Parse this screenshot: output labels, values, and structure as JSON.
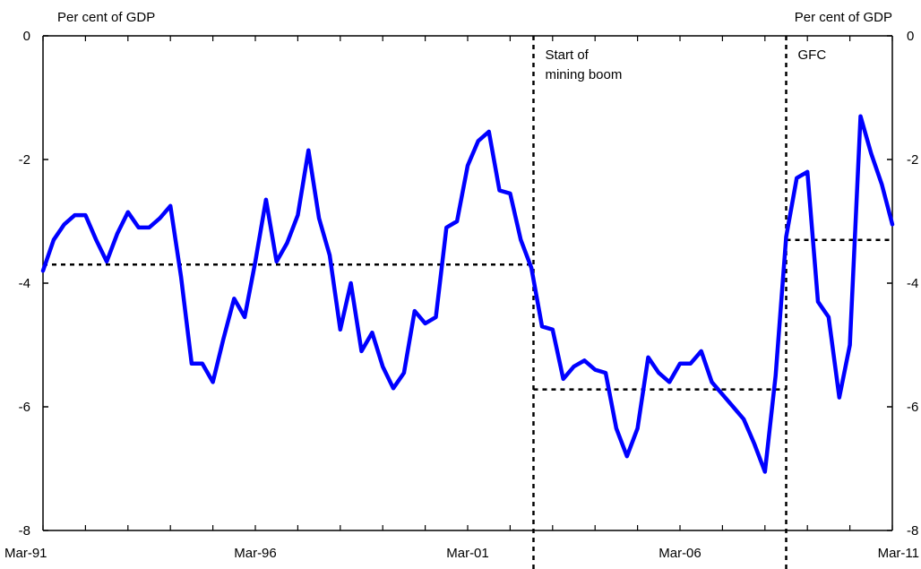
{
  "chart_data": {
    "type": "line",
    "ylabel_left": "Per cent of GDP",
    "ylabel_right": "Per cent of GDP",
    "ylim": [
      -8,
      0
    ],
    "yticks": [
      0,
      -2,
      -4,
      -6,
      -8
    ],
    "xlim": [
      1991.0,
      2011.0
    ],
    "xticks": [
      {
        "x": 1991.0,
        "label": "Mar-91"
      },
      {
        "x": 1996.0,
        "label": "Mar-96"
      },
      {
        "x": 2001.0,
        "label": "Mar-01"
      },
      {
        "x": 2006.0,
        "label": "Mar-06"
      },
      {
        "x": 2011.0,
        "label": "Mar-11"
      }
    ],
    "grid": false,
    "series": [
      {
        "color": "#0000ff",
        "x": [
          1991.0,
          1991.25,
          1991.5,
          1991.75,
          1992.0,
          1992.25,
          1992.5,
          1992.75,
          1993.0,
          1993.25,
          1993.5,
          1993.75,
          1994.0,
          1994.25,
          1994.5,
          1994.75,
          1995.0,
          1995.25,
          1995.5,
          1995.75,
          1996.0,
          1996.25,
          1996.5,
          1996.75,
          1997.0,
          1997.25,
          1997.5,
          1997.75,
          1998.0,
          1998.25,
          1998.5,
          1998.75,
          1999.0,
          1999.25,
          1999.5,
          1999.75,
          2000.0,
          2000.25,
          2000.5,
          2000.75,
          2001.0,
          2001.25,
          2001.5,
          2001.75,
          2002.0,
          2002.25,
          2002.5,
          2002.75,
          2003.0,
          2003.25,
          2003.5,
          2003.75,
          2004.0,
          2004.25,
          2004.5,
          2004.75,
          2005.0,
          2005.25,
          2005.5,
          2005.75,
          2006.0,
          2006.25,
          2006.5,
          2006.75,
          2007.0,
          2007.25,
          2007.5,
          2007.75,
          2008.0,
          2008.25,
          2008.5,
          2008.75,
          2009.0,
          2009.25,
          2009.5,
          2009.75,
          2010.0,
          2010.25,
          2010.5,
          2010.75,
          2011.0
        ],
        "y": [
          -3.8,
          -3.3,
          -3.05,
          -2.9,
          -2.9,
          -3.3,
          -3.65,
          -3.2,
          -2.85,
          -3.1,
          -3.1,
          -2.95,
          -2.75,
          -3.9,
          -5.3,
          -5.3,
          -5.6,
          -4.9,
          -4.25,
          -4.55,
          -3.65,
          -2.65,
          -3.65,
          -3.35,
          -2.9,
          -1.85,
          -2.95,
          -3.55,
          -4.75,
          -4.0,
          -5.1,
          -4.8,
          -5.35,
          -5.7,
          -5.45,
          -4.45,
          -4.65,
          -4.55,
          -3.1,
          -3.0,
          -2.1,
          -1.7,
          -1.55,
          -2.5,
          -2.55,
          -3.3,
          -3.75,
          -4.7,
          -4.75,
          -5.55,
          -5.35,
          -5.25,
          -5.4,
          -5.45,
          -6.35,
          -6.8,
          -6.35,
          -5.2,
          -5.45,
          -5.6,
          -5.3,
          -5.3,
          -5.1,
          -5.6,
          -5.8,
          -6.0,
          -6.2,
          -6.6,
          -7.05,
          -5.5,
          -3.25,
          -2.3,
          -2.2,
          -4.3,
          -4.55,
          -5.85,
          -5.0,
          -1.3,
          -1.9,
          -2.4,
          -3.05
        ]
      }
    ],
    "averages": [
      {
        "x0": 1991.0,
        "x1": 2002.55,
        "y": -3.7
      },
      {
        "x0": 2002.55,
        "x1": 2008.5,
        "y": -5.72
      },
      {
        "x0": 2008.5,
        "x1": 2011.0,
        "y": -3.3
      }
    ],
    "events": [
      {
        "x": 2002.55,
        "label_lines": [
          "Start of",
          "mining boom"
        ]
      },
      {
        "x": 2008.5,
        "label_lines": [
          "GFC"
        ]
      }
    ]
  }
}
